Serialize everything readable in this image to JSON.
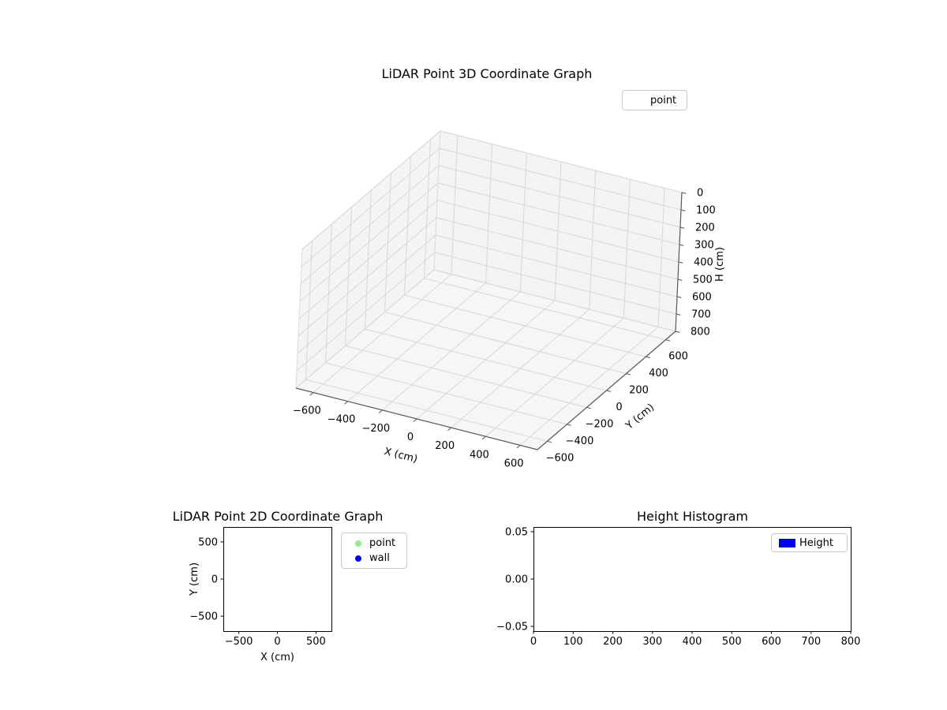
{
  "figure": {
    "background": "#ffffff"
  },
  "chart_data": [
    {
      "type": "scatter3d",
      "title": "LiDAR Point 3D Coordinate Graph",
      "xlabel": "X (cm)",
      "ylabel": "Y (cm)",
      "zlabel": "H (cm)",
      "xlim": [
        -700,
        700
      ],
      "ylim": [
        -700,
        700
      ],
      "zlim": [
        0,
        800
      ],
      "zaxis_inverted": true,
      "grid": true,
      "xticks": [
        -600,
        -400,
        -200,
        0,
        200,
        400,
        600
      ],
      "xtick_labels": [
        "−600",
        "−400",
        "−200",
        "0",
        "200",
        "400",
        "600"
      ],
      "yticks": [
        600,
        400,
        200,
        0,
        -200,
        -400,
        -600
      ],
      "ytick_labels": [
        "600",
        "400",
        "200",
        "0",
        "−200",
        "−400",
        "−600"
      ],
      "zticks": [
        0,
        100,
        200,
        300,
        400,
        500,
        600,
        700,
        800
      ],
      "ztick_labels": [
        "0",
        "100",
        "200",
        "300",
        "400",
        "500",
        "600",
        "700",
        "800"
      ],
      "legend": [
        {
          "label": "point",
          "marker": "none"
        }
      ],
      "series": [
        {
          "name": "point",
          "x": [],
          "y": [],
          "z": []
        }
      ]
    },
    {
      "type": "scatter",
      "title": "LiDAR Point 2D Coordinate Graph",
      "xlabel": "X (cm)",
      "ylabel": "Y (cm)",
      "xlim": [
        -700,
        700
      ],
      "ylim": [
        -700,
        700
      ],
      "grid": false,
      "xticks": [
        -500,
        0,
        500
      ],
      "xtick_labels": [
        "−500",
        "0",
        "500"
      ],
      "yticks": [
        500,
        0,
        -500
      ],
      "ytick_labels": [
        "500",
        "0",
        "−500"
      ],
      "legend": [
        {
          "label": "point",
          "color": "#90ee90"
        },
        {
          "label": "wall",
          "color": "#0000ff"
        }
      ],
      "series": [
        {
          "name": "point",
          "color": "#90ee90",
          "x": [],
          "y": []
        },
        {
          "name": "wall",
          "color": "#0000ff",
          "x": [],
          "y": []
        }
      ]
    },
    {
      "type": "bar",
      "title": "Height Histogram",
      "xlabel": "",
      "ylabel": "",
      "xlim": [
        0,
        800
      ],
      "ylim": [
        -0.055,
        0.055
      ],
      "grid": false,
      "xticks": [
        0,
        100,
        200,
        300,
        400,
        500,
        600,
        700,
        800
      ],
      "xtick_labels": [
        "0",
        "100",
        "200",
        "300",
        "400",
        "500",
        "600",
        "700",
        "800"
      ],
      "yticks": [
        0.05,
        0.0,
        -0.05
      ],
      "ytick_labels": [
        "0.05",
        "0.00",
        "−0.05"
      ],
      "legend": [
        {
          "label": "Height",
          "color": "#0000ff"
        }
      ],
      "values": []
    }
  ]
}
